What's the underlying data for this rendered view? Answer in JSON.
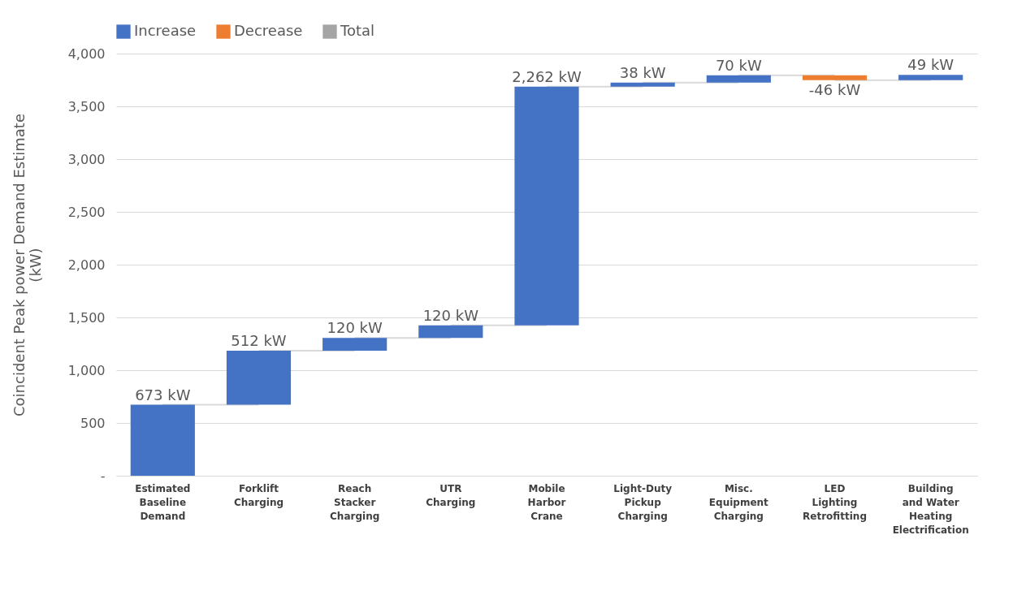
{
  "chart_data": {
    "type": "bar",
    "ylabel": "Coincident Peak power Demand Estimate (kW)",
    "categories": [
      "Estimated Baseline Demand",
      "Forklift Charging",
      "Reach Stacker Charging",
      "UTR Charging",
      "Mobile Harbor Crane",
      "Light-Duty Pickup Charging",
      "Misc. Equipment Charging",
      "LED Lighting Retrofitting",
      "Building and Water Heating Electrification"
    ],
    "series": [
      {
        "name": "Increase",
        "color": "#4472c4",
        "values": [
          673,
          512,
          120,
          120,
          2262,
          38,
          70,
          null,
          49
        ],
        "base": [
          0,
          673,
          1185,
          1305,
          1425,
          3687,
          3725,
          null,
          3749
        ],
        "value_labels": [
          "673 kW",
          "512 kW",
          "120 kW",
          "120 kW",
          "2,262 kW",
          "38 kW",
          "70 kW",
          null,
          "49 kW"
        ]
      },
      {
        "name": "Decrease",
        "color": "#ed7d31",
        "values": [
          null,
          null,
          null,
          null,
          null,
          null,
          null,
          -46,
          null
        ],
        "base": [
          null,
          null,
          null,
          null,
          null,
          null,
          null,
          3795,
          null
        ],
        "value_labels": [
          null,
          null,
          null,
          null,
          null,
          null,
          null,
          "-46 kW",
          null
        ]
      },
      {
        "name": "Total",
        "color": "#a5a5a5",
        "values": [
          null,
          null,
          null,
          null,
          null,
          null,
          null,
          null,
          null
        ]
      }
    ],
    "ylim": [
      0,
      4000
    ],
    "yticks": [
      {
        "value": 0,
        "label": "-"
      },
      500,
      {
        "value": 1000,
        "label": "1,000"
      },
      {
        "value": 1500,
        "label": "1,500"
      },
      {
        "value": 2000,
        "label": "2,000"
      },
      {
        "value": 2500,
        "label": "2,500"
      },
      {
        "value": 3000,
        "label": "3,000"
      },
      {
        "value": 3500,
        "label": "3,500"
      },
      {
        "value": 4000,
        "label": "4,000"
      }
    ],
    "grid": "y",
    "legend": "top"
  }
}
